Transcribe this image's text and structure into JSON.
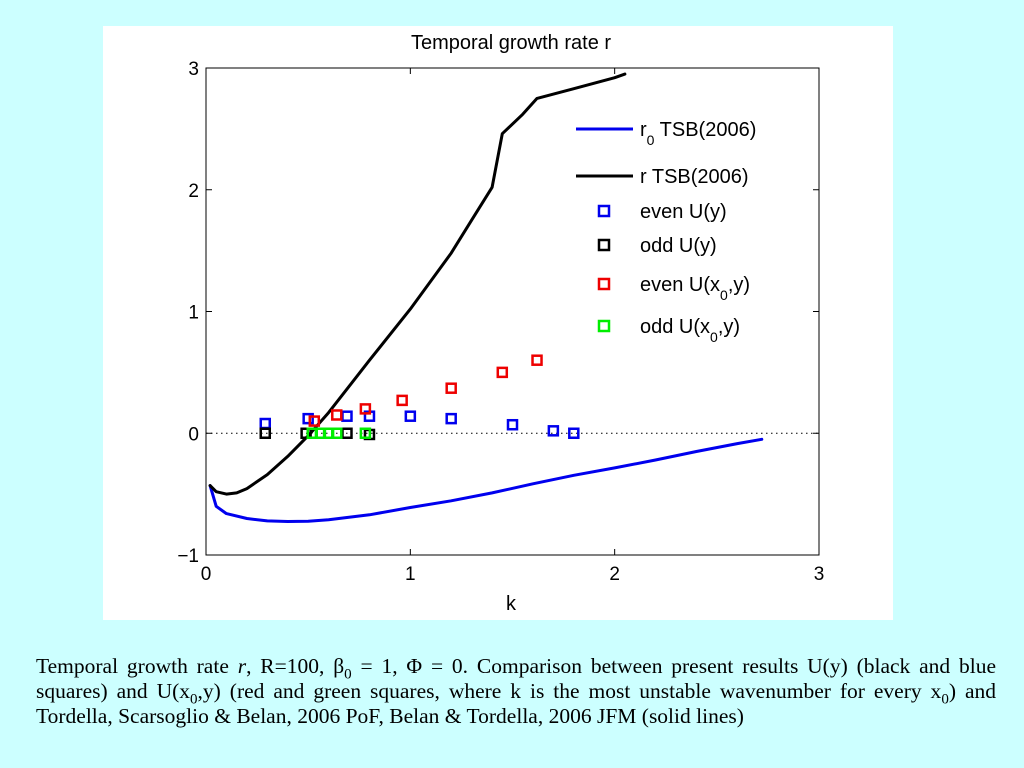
{
  "chart_data": {
    "type": "scatter",
    "title": "Temporal growth rate r",
    "xlabel": "k",
    "ylabel": "",
    "xlim": [
      0,
      3
    ],
    "ylim": [
      -1,
      3
    ],
    "xticks": [
      "0",
      "1",
      "2",
      "3"
    ],
    "yticks": [
      "−1",
      "0",
      "1",
      "2",
      "3"
    ],
    "grid": false,
    "reference_line": {
      "y": 0,
      "style": "dotted"
    },
    "legend_position": "top-right",
    "series": [
      {
        "name": "r0 TSB(2006)",
        "legend_main": "r",
        "legend_sub": "0",
        "legend_tail": " TSB(2006)",
        "kind": "line",
        "color": "#0000ee",
        "x": [
          0.02,
          0.05,
          0.1,
          0.2,
          0.3,
          0.4,
          0.5,
          0.6,
          0.8,
          1.0,
          1.2,
          1.4,
          1.6,
          1.8,
          2.0,
          2.2,
          2.4,
          2.6,
          2.72
        ],
        "y": [
          -0.43,
          -0.6,
          -0.66,
          -0.7,
          -0.72,
          -0.725,
          -0.722,
          -0.71,
          -0.67,
          -0.61,
          -0.555,
          -0.49,
          -0.415,
          -0.345,
          -0.285,
          -0.22,
          -0.15,
          -0.085,
          -0.05
        ]
      },
      {
        "name": "r TSB(2006)",
        "legend_main": "r TSB(2006)",
        "legend_sub": "",
        "legend_tail": "",
        "kind": "line",
        "color": "#000000",
        "x": [
          0.02,
          0.05,
          0.1,
          0.15,
          0.2,
          0.3,
          0.4,
          0.5,
          0.6,
          0.8,
          1.0,
          1.2,
          1.3,
          1.4,
          1.45,
          1.55,
          1.62,
          1.8,
          2.0,
          2.05
        ],
        "y": [
          -0.43,
          -0.48,
          -0.5,
          -0.49,
          -0.455,
          -0.34,
          -0.19,
          -0.02,
          0.17,
          0.6,
          1.02,
          1.48,
          1.75,
          2.02,
          2.46,
          2.62,
          2.75,
          2.83,
          2.92,
          2.95
        ]
      },
      {
        "name": "even U(y)",
        "legend_main": "even U(y)",
        "legend_sub": "",
        "legend_tail": "",
        "kind": "marker",
        "color": "#0000ee",
        "x": [
          0.29,
          0.5,
          0.69,
          0.8,
          1.0,
          1.2,
          1.5,
          1.7,
          1.8
        ],
        "y": [
          0.08,
          0.12,
          0.14,
          0.14,
          0.14,
          0.12,
          0.07,
          0.02,
          0.0
        ]
      },
      {
        "name": "odd U(y)",
        "legend_main": "odd U(y)",
        "legend_sub": "",
        "legend_tail": "",
        "kind": "marker",
        "color": "#000000",
        "x": [
          0.29,
          0.49,
          0.69,
          0.8
        ],
        "y": [
          0.0,
          0.0,
          0.0,
          -0.01
        ]
      },
      {
        "name": "even U(x0,y)",
        "legend_main": "even U(x",
        "legend_sub": "0",
        "legend_tail": ",y)",
        "kind": "marker",
        "color": "#ee0000",
        "x": [
          0.53,
          0.64,
          0.78,
          0.96,
          1.2,
          1.45,
          1.62
        ],
        "y": [
          0.1,
          0.15,
          0.2,
          0.27,
          0.37,
          0.5,
          0.6
        ]
      },
      {
        "name": "odd U(x0,y)",
        "legend_main": "odd U(x",
        "legend_sub": "0",
        "legend_tail": ",y)",
        "kind": "marker",
        "color": "#00ee00",
        "x": [
          0.52,
          0.56,
          0.6,
          0.64,
          0.78
        ],
        "y": [
          0.0,
          0.0,
          0.0,
          0.0,
          0.0
        ]
      }
    ]
  },
  "caption": {
    "t1": "Temporal growth rate ",
    "t2": "r",
    "t3": ", R=100, β",
    "t4": "0",
    "t5": " = 1, Φ = 0. Comparison between present results U(y) (black and blue squares) and U(x",
    "t6": "0",
    "t7": ",y) (red and green squares, where k is the most unstable wavenumber for every x",
    "t8": "0",
    "t9": ") and Tordella, Scarsoglio & Belan, 2006 PoF, Belan & Tordella, 2006 JFM (solid lines)"
  }
}
